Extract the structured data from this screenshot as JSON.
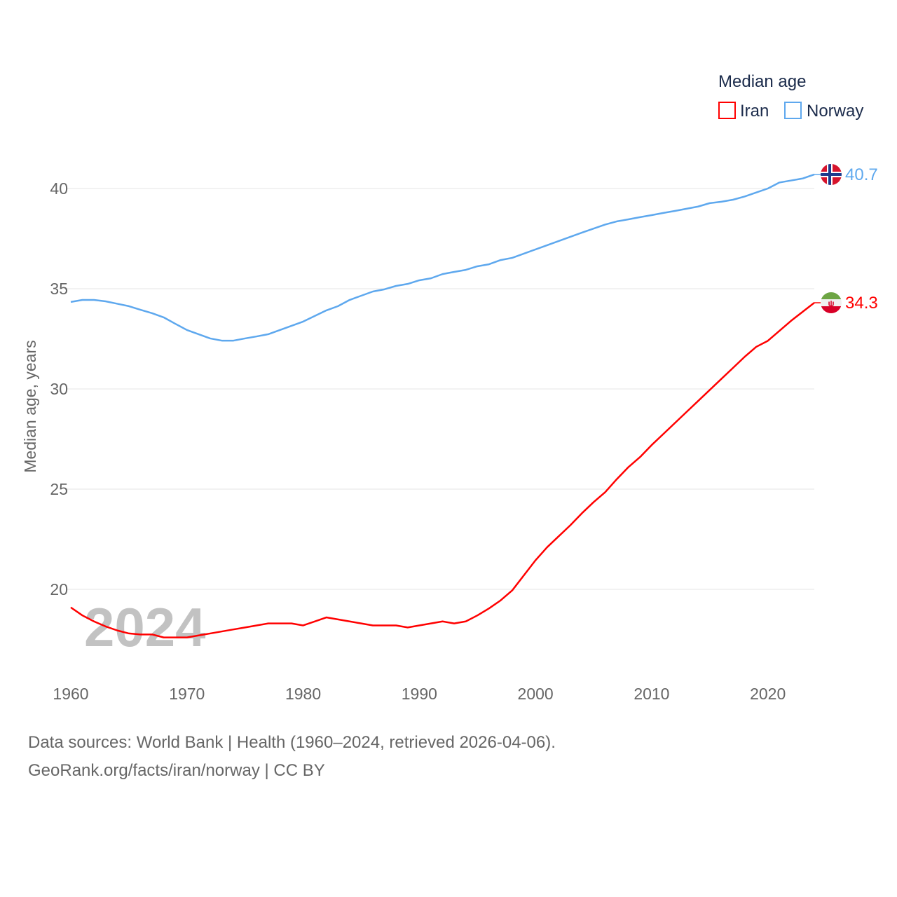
{
  "chart_data": {
    "type": "line",
    "title": "Median age",
    "xlabel": "",
    "ylabel": "Median age, years",
    "xlim": [
      1960,
      2024
    ],
    "ylim": [
      16.5,
      42
    ],
    "yticks": [
      20,
      25,
      30,
      35,
      40
    ],
    "xticks": [
      1960,
      1970,
      1980,
      1990,
      2000,
      2010,
      2020
    ],
    "grid": true,
    "legend_placement": "top-right",
    "watermark_year": "2024",
    "x": [
      1960,
      1961,
      1962,
      1963,
      1964,
      1965,
      1966,
      1967,
      1968,
      1969,
      1970,
      1971,
      1972,
      1973,
      1974,
      1975,
      1976,
      1977,
      1978,
      1979,
      1980,
      1981,
      1982,
      1983,
      1984,
      1985,
      1986,
      1987,
      1988,
      1989,
      1990,
      1991,
      1992,
      1993,
      1994,
      1995,
      1996,
      1997,
      1998,
      1999,
      2000,
      2001,
      2002,
      2003,
      2004,
      2005,
      2006,
      2007,
      2008,
      2009,
      2010,
      2011,
      2012,
      2013,
      2014,
      2015,
      2016,
      2017,
      2018,
      2019,
      2020,
      2021,
      2022,
      2023,
      2024
    ],
    "series": [
      {
        "name": "Iran",
        "color": "#ff0000",
        "end_label": "34.3",
        "flag": "iran-flag",
        "values": [
          19.1,
          18.7,
          18.4,
          18.15,
          17.95,
          17.8,
          17.75,
          17.75,
          17.6,
          17.6,
          17.6,
          17.7,
          17.8,
          17.9,
          18.0,
          18.1,
          18.2,
          18.3,
          18.3,
          18.3,
          18.2,
          18.4,
          18.6,
          18.5,
          18.4,
          18.3,
          18.2,
          18.2,
          18.2,
          18.1,
          18.2,
          18.3,
          18.4,
          18.3,
          18.4,
          18.7,
          19.05,
          19.45,
          19.95,
          20.7,
          21.45,
          22.1,
          22.65,
          23.2,
          23.8,
          24.35,
          24.85,
          25.5,
          26.1,
          26.6,
          27.2,
          27.75,
          28.3,
          28.85,
          29.4,
          29.95,
          30.5,
          31.05,
          31.6,
          32.1,
          32.4,
          32.9,
          33.4,
          33.85,
          34.3
        ]
      },
      {
        "name": "Norway",
        "color": "#5ea8ee",
        "end_label": "40.7",
        "flag": "norway-flag",
        "values": [
          34.34,
          34.44,
          34.44,
          34.37,
          34.25,
          34.13,
          33.95,
          33.78,
          33.57,
          33.25,
          32.94,
          32.73,
          32.52,
          32.41,
          32.41,
          32.52,
          32.62,
          32.73,
          32.94,
          33.15,
          33.36,
          33.64,
          33.92,
          34.13,
          34.44,
          34.65,
          34.86,
          34.97,
          35.14,
          35.24,
          35.42,
          35.52,
          35.73,
          35.84,
          35.94,
          36.12,
          36.22,
          36.43,
          36.54,
          36.75,
          36.96,
          37.17,
          37.38,
          37.59,
          37.8,
          38.0,
          38.2,
          38.36,
          38.46,
          38.57,
          38.67,
          38.78,
          38.88,
          38.99,
          39.1,
          39.27,
          39.34,
          39.44,
          39.6,
          39.8,
          40.0,
          40.3,
          40.4,
          40.5,
          40.7
        ]
      }
    ]
  },
  "legend": {
    "title": "Median age",
    "items": [
      "Iran",
      "Norway"
    ]
  },
  "footer": {
    "line1": "Data sources: World Bank | Health (1960–2024, retrieved 2026-04-06).",
    "line2": "GeoRank.org/facts/iran/norway | CC BY"
  }
}
